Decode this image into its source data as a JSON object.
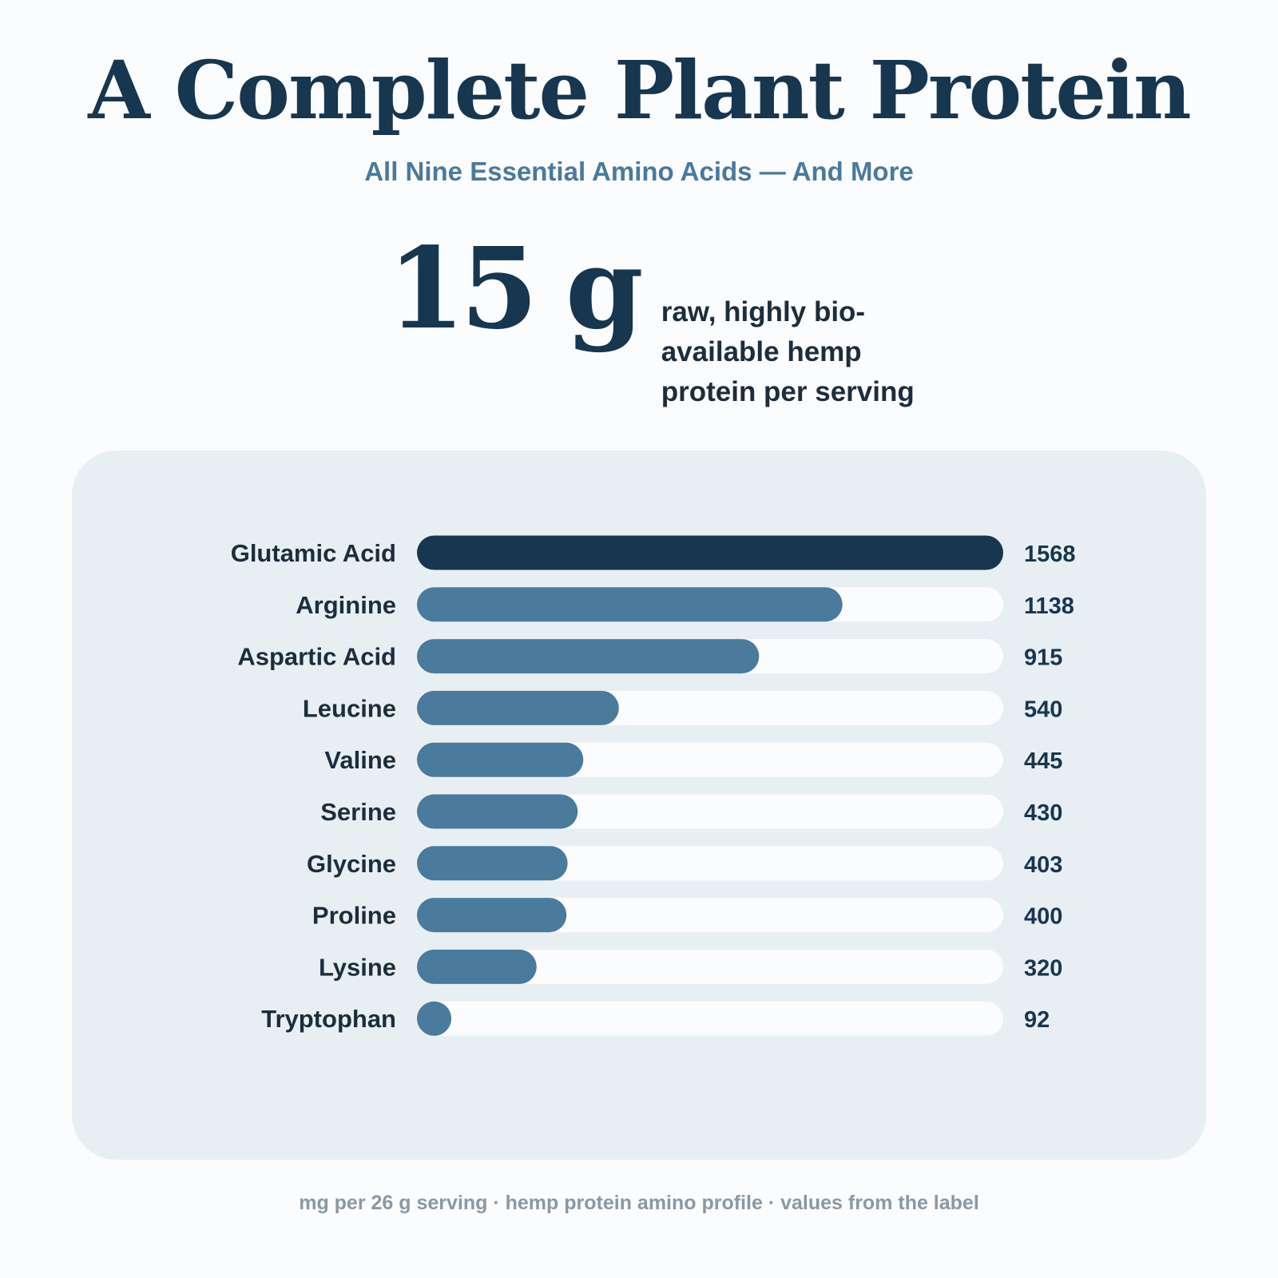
{
  "header": {
    "title": "A Complete Plant Protein",
    "subtitle": "All Nine Essential Amino Acids — And More"
  },
  "stat": {
    "number": "15",
    "unit": "g",
    "description": "raw, highly bio-available hemp protein per serving"
  },
  "colors": {
    "top_bar": "#17364f",
    "bar": "#4a7a9c",
    "track": "#fbfcfd",
    "panel": "#e8eff3"
  },
  "chart_data": {
    "type": "bar",
    "orientation": "horizontal",
    "categories": [
      "Glutamic Acid",
      "Arginine",
      "Aspartic Acid",
      "Leucine",
      "Valine",
      "Serine",
      "Glycine",
      "Proline",
      "Lysine",
      "Tryptophan"
    ],
    "values": [
      1568,
      1138,
      915,
      540,
      445,
      430,
      403,
      400,
      320,
      92
    ],
    "value_labels": [
      "1568",
      "1138",
      "915",
      "540",
      "445",
      "430",
      "403",
      "400",
      "320",
      "92"
    ],
    "xlim": [
      0,
      1568
    ],
    "grid": false,
    "legend": "none"
  },
  "footer": {
    "note": "mg per 26 g serving · hemp protein amino profile · values from the label"
  }
}
